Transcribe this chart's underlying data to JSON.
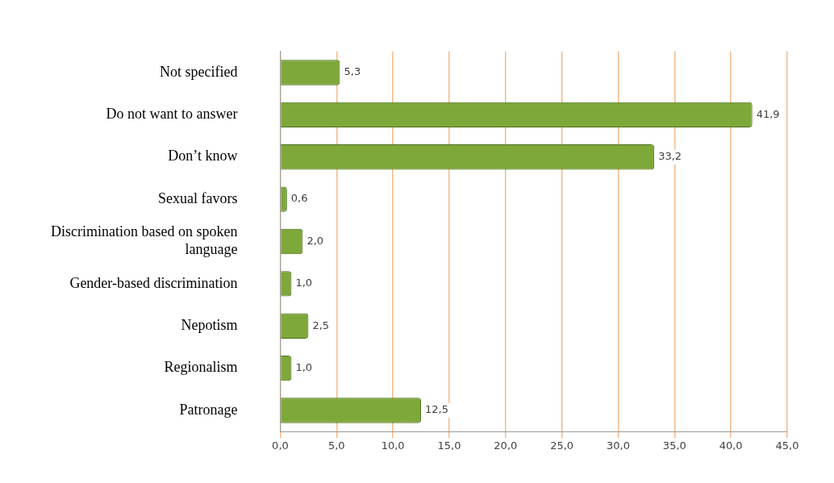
{
  "chart_data": {
    "type": "bar",
    "orientation": "horizontal",
    "categories": [
      "Not specified",
      "Do not want to answer",
      "Don’t know",
      "Sexual favors",
      "Discrimination based on spoken language",
      "Gender-based discrimination",
      "Nepotism",
      "Regionalism",
      "Patronage"
    ],
    "values": [
      5.3,
      41.9,
      33.2,
      0.6,
      2.0,
      1.0,
      2.5,
      1.0,
      12.5
    ],
    "value_labels": [
      "5,3",
      "41,9",
      "33,2",
      "0,6",
      "2,0",
      "1,0",
      "2,5",
      "1,0",
      "12,5"
    ],
    "color": "#7ea83a",
    "xlim": [
      0,
      45
    ],
    "xticks": [
      {
        "value": 0,
        "label": "0,0"
      },
      {
        "value": 5,
        "label": "5,0"
      },
      {
        "value": 10,
        "label": "10,0"
      },
      {
        "value": 15,
        "label": "15,0"
      },
      {
        "value": 20,
        "label": "20,0"
      },
      {
        "value": 25,
        "label": "25,0"
      },
      {
        "value": 30,
        "label": "30,0"
      },
      {
        "value": 35,
        "label": "35,0"
      },
      {
        "value": 40,
        "label": "40,0"
      },
      {
        "value": 45,
        "label": "45,0"
      }
    ],
    "grid": "x",
    "legend": false
  }
}
